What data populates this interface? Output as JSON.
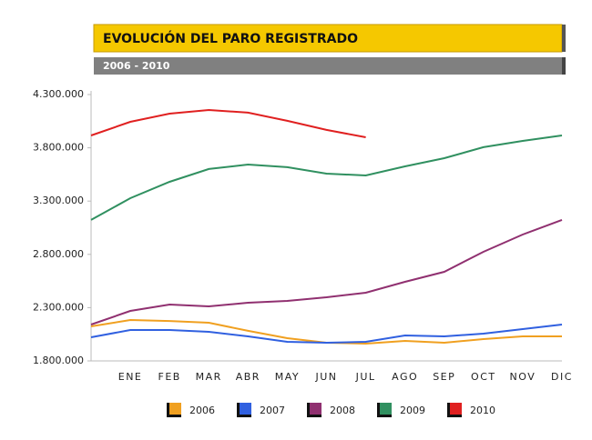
{
  "chart_data": {
    "type": "line",
    "title": "EVOLUCIÓN DEL PARO REGISTRADO",
    "subtitle": "2006 - 2010",
    "categories": [
      null,
      "ENE",
      "FEB",
      "MAR",
      "ABR",
      "MAY",
      "JUN",
      "JUL",
      "AGO",
      "SEP",
      "OCT",
      "NOV",
      "DIC"
    ],
    "ylim": [
      1800000,
      4300000
    ],
    "yticks": [
      {
        "value": 1800000,
        "label": "1.800.000"
      },
      {
        "value": 2300000,
        "label": "2.300.000"
      },
      {
        "value": 2800000,
        "label": "2.800.000"
      },
      {
        "value": 3300000,
        "label": "3.300.000"
      },
      {
        "value": 3800000,
        "label": "3.800.000"
      },
      {
        "value": 4300000,
        "label": "4.300.000"
      }
    ],
    "grid": false,
    "legend": "bottom",
    "series": [
      {
        "name": "2006",
        "color": "#f0a020",
        "values": [
          2124000,
          2184000,
          2175000,
          2158000,
          2082000,
          2013000,
          1971000,
          1962000,
          1988000,
          1971000,
          2005000,
          2030000,
          2030000
        ]
      },
      {
        "name": "2007",
        "color": "#3060e0",
        "values": [
          2022000,
          2090000,
          2090000,
          2073000,
          2030000,
          1979000,
          1971000,
          1979000,
          2039000,
          2030000,
          2056000,
          2099000,
          2141000
        ]
      },
      {
        "name": "2008",
        "color": "#903070",
        "values": [
          2141000,
          2269000,
          2329000,
          2312000,
          2346000,
          2363000,
          2397000,
          2440000,
          2542000,
          2636000,
          2824000,
          2986000,
          3123000
        ]
      },
      {
        "name": "2009",
        "color": "#309060",
        "values": [
          3123000,
          3327000,
          3481000,
          3601000,
          3643000,
          3618000,
          3558000,
          3541000,
          3626000,
          3703000,
          3806000,
          3865000,
          3916000
        ]
      },
      {
        "name": "2010",
        "color": "#e02020",
        "values": [
          3916000,
          4044000,
          4121000,
          4155000,
          4130000,
          4053000,
          3968000,
          3899000,
          null,
          null,
          null,
          null,
          null
        ]
      }
    ]
  }
}
